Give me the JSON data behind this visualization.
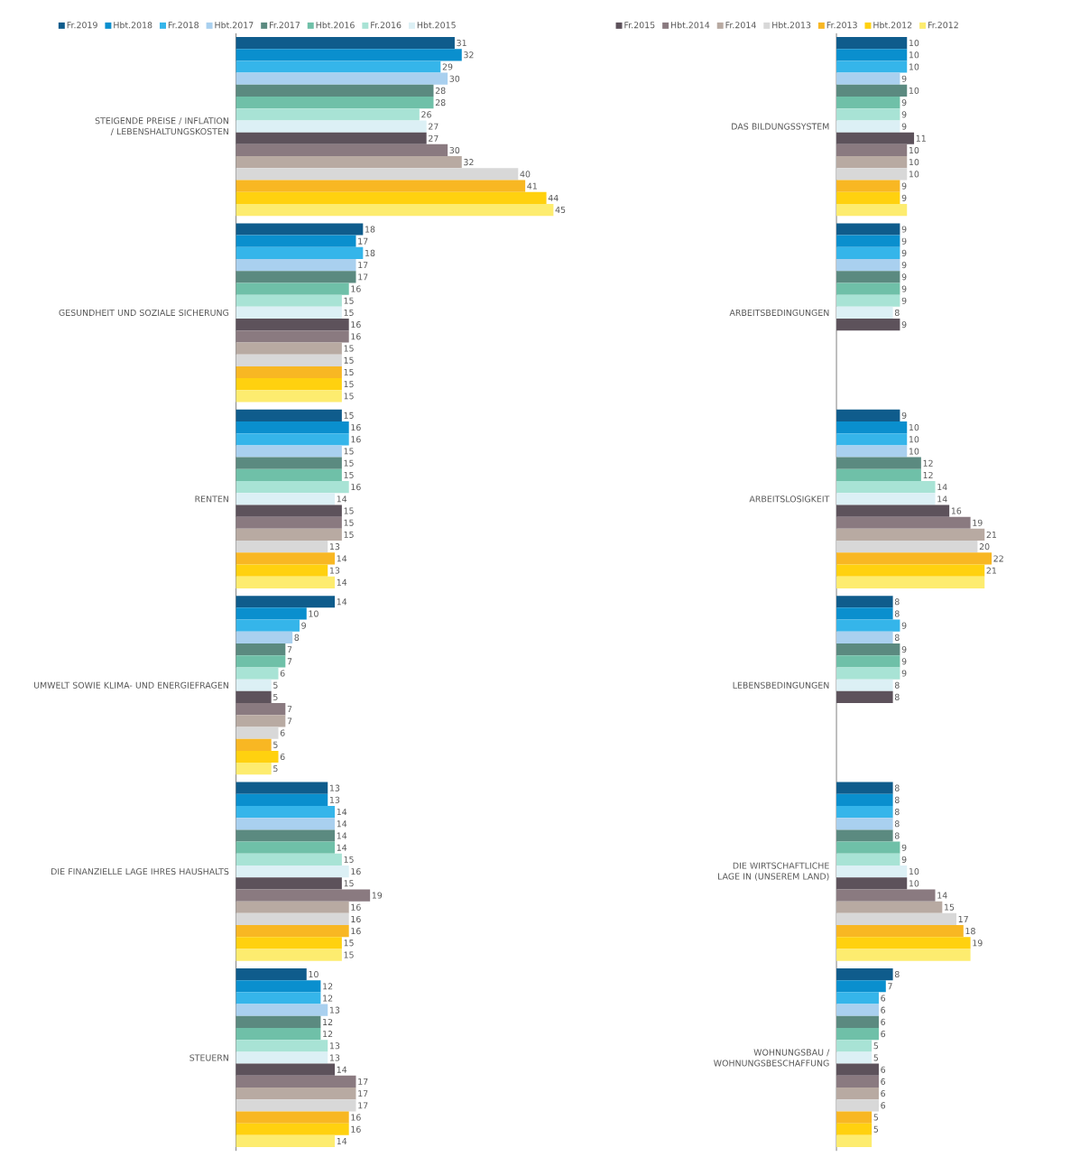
{
  "chart_data": [
    {
      "type": "bar",
      "orientation": "horizontal",
      "legend": "top",
      "tick_labels": "y",
      "data_labels": true,
      "xlim": [
        0,
        45
      ],
      "categories": [
        "STEIGENDE PREISE / INFLATION / LEBENSHALTUNGSKOSTEN",
        "GESUNDHEIT UND SOZIALE SICHERUNG",
        "RENTEN",
        "UMWELT SOWIE KLIMA- UND ENERGIEFRAGEN",
        "DIE FINANZIELLE LAGE IHRES HAUSHALTS",
        "STEUERN"
      ],
      "series": [
        {
          "name": "Fr.2019",
          "color": "#0f5c8c",
          "values": [
            31,
            18,
            15,
            14,
            13,
            10
          ]
        },
        {
          "name": "Hbt.2018",
          "color": "#0a8fce",
          "values": [
            32,
            17,
            16,
            10,
            13,
            12
          ]
        },
        {
          "name": "Fr.2018",
          "color": "#35b5ea",
          "values": [
            29,
            18,
            16,
            9,
            14,
            12
          ]
        },
        {
          "name": "Hbt.2017",
          "color": "#a9d0ef",
          "values": [
            30,
            17,
            15,
            8,
            14,
            13
          ]
        },
        {
          "name": "Fr.2017",
          "color": "#5b8a80",
          "values": [
            28,
            17,
            15,
            7,
            14,
            12
          ]
        },
        {
          "name": "Hbt.2016",
          "color": "#6fc0a8",
          "values": [
            28,
            16,
            15,
            7,
            14,
            12
          ]
        },
        {
          "name": "Fr.2016",
          "color": "#a8e3d5",
          "values": [
            26,
            15,
            16,
            6,
            15,
            13
          ]
        },
        {
          "name": "Hbt.2015",
          "color": "#dcf0f5",
          "values": [
            27,
            15,
            14,
            5,
            16,
            13
          ]
        },
        {
          "color": "#5d525b",
          "values": [
            27,
            16,
            15,
            5,
            15,
            14
          ]
        },
        {
          "color": "#8a7a80",
          "values": [
            30,
            16,
            15,
            7,
            19,
            17
          ]
        },
        {
          "color": "#b8aaa2",
          "values": [
            32,
            15,
            15,
            7,
            16,
            17
          ]
        },
        {
          "color": "#d8d8d8",
          "values": [
            40,
            15,
            13,
            6,
            16,
            17
          ]
        },
        {
          "color": "#f8b723",
          "values": [
            41,
            15,
            14,
            5,
            16,
            16
          ]
        },
        {
          "color": "#ffd10f",
          "values": [
            44,
            15,
            13,
            6,
            15,
            16
          ]
        },
        {
          "color": "#fdec6f",
          "values": [
            45,
            15,
            14,
            5,
            15,
            14
          ]
        }
      ]
    },
    {
      "type": "bar",
      "orientation": "horizontal",
      "legend": "top",
      "tick_labels": "y",
      "data_labels": true,
      "xlim": [
        0,
        22
      ],
      "categories": [
        "DAS BILDUNGSSYSTEM",
        "ARBEITSBEDINGUNGEN",
        "ARBEITSLOSIGKEIT",
        "LEBENSBEDINGUNGEN",
        "DIE WIRTSCHAFTLICHE LAGE IN (UNSEREM LAND)",
        "WOHNUNGSBAU / WOHNUNGSBESCHAFFUNG"
      ],
      "series": [
        {
          "color": "#0f5c8c",
          "values": [
            10,
            9,
            9,
            8,
            8,
            8
          ]
        },
        {
          "color": "#0a8fce",
          "values": [
            10,
            9,
            10,
            8,
            8,
            7
          ]
        },
        {
          "color": "#35b5ea",
          "values": [
            10,
            9,
            10,
            9,
            8,
            6
          ]
        },
        {
          "color": "#a9d0ef",
          "values": [
            9,
            9,
            10,
            8,
            8,
            6
          ]
        },
        {
          "color": "#5b8a80",
          "values": [
            10,
            9,
            12,
            9,
            8,
            6
          ]
        },
        {
          "color": "#6fc0a8",
          "values": [
            9,
            9,
            12,
            9,
            9,
            6
          ]
        },
        {
          "color": "#a8e3d5",
          "values": [
            9,
            9,
            14,
            9,
            9,
            5
          ]
        },
        {
          "color": "#dcf0f5",
          "values": [
            9,
            8,
            14,
            8,
            10,
            5
          ]
        },
        {
          "name": "Fr.2015",
          "color": "#5d525b",
          "values": [
            11,
            9,
            16,
            8,
            10,
            6
          ]
        },
        {
          "name": "Hbt.2014",
          "color": "#8a7a80",
          "values": [
            10,
            null,
            19,
            null,
            14,
            6
          ]
        },
        {
          "name": "Fr.2014",
          "color": "#b8aaa2",
          "values": [
            10,
            null,
            21,
            null,
            15,
            6
          ]
        },
        {
          "name": "Hbt.2013",
          "color": "#d8d8d8",
          "values": [
            10,
            null,
            20,
            null,
            17,
            6
          ]
        },
        {
          "name": "Fr.2013",
          "color": "#f8b723",
          "values": [
            9,
            null,
            22,
            null,
            18,
            5
          ]
        },
        {
          "name": "Hbt.2012",
          "color": "#ffd10f",
          "values": [
            9,
            null,
            21,
            null,
            19,
            5
          ]
        },
        {
          "name": "Fr.2012",
          "color": "#fdec6f",
          "values": [
            10,
            null,
            21,
            null,
            19,
            5
          ],
          "value_labels": [
            null,
            null,
            null,
            null,
            null,
            null
          ]
        }
      ]
    }
  ]
}
